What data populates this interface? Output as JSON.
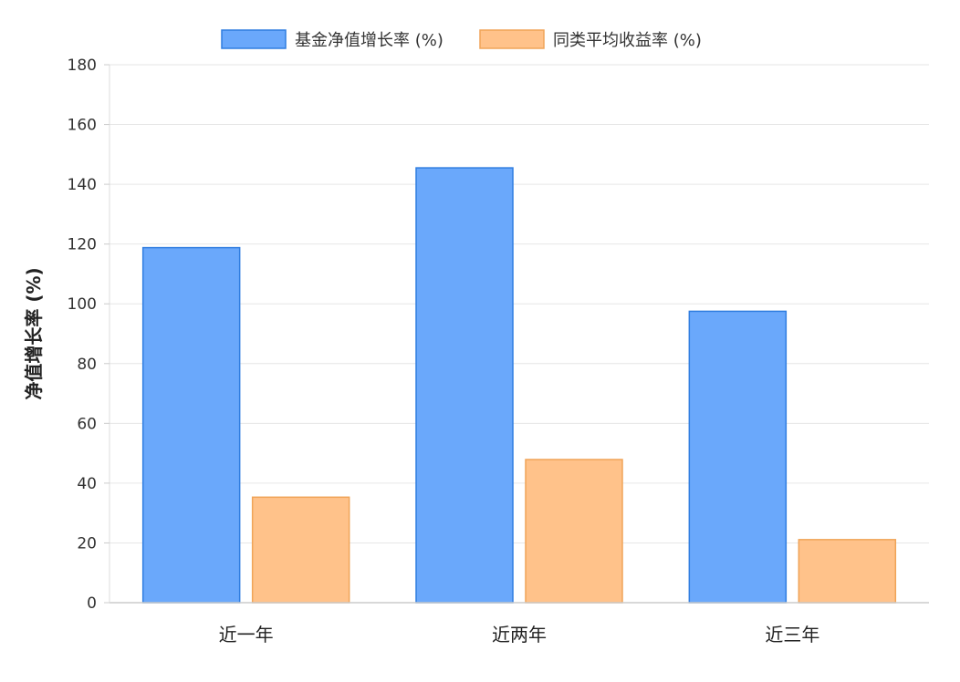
{
  "chart_data": {
    "type": "bar",
    "categories": [
      "近一年",
      "近两年",
      "近三年"
    ],
    "series": [
      {
        "name": "基金净值增长率 (%)",
        "values": [
          118.8,
          145.5,
          97.5
        ],
        "fill": "#6aa8fb",
        "stroke": "#2f7de0"
      },
      {
        "name": "同类平均收益率 (%)",
        "values": [
          35.3,
          47.9,
          21.1
        ],
        "fill": "#ffc28a",
        "stroke": "#f0a458"
      }
    ],
    "xlabel": "",
    "ylabel": "净值增长率 (%)",
    "ylim": [
      0,
      180
    ],
    "yticks": [
      0,
      20,
      40,
      60,
      80,
      100,
      120,
      140,
      160,
      180
    ],
    "grid": true,
    "legend": "top-center"
  }
}
